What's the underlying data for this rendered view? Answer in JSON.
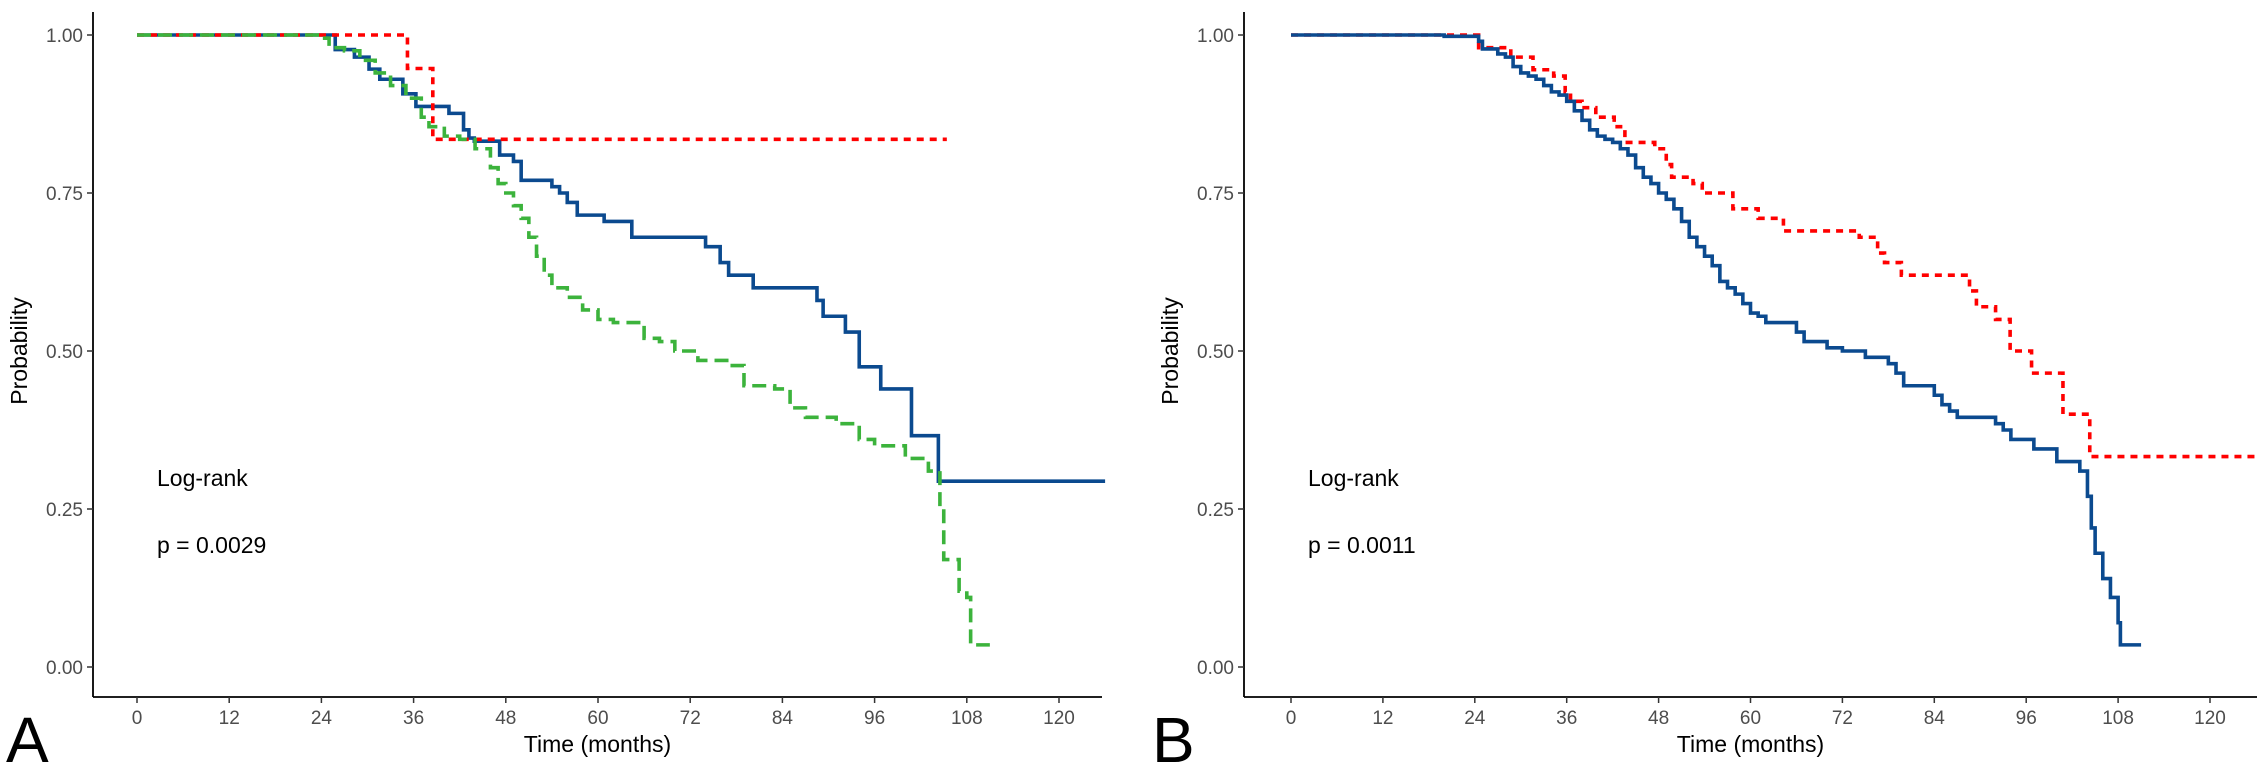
{
  "chart_data": [
    {
      "type": "line",
      "panel_label": "A",
      "xlabel": "Time (months)",
      "ylabel": "Probability",
      "xlim": [
        0,
        126
      ],
      "ylim": [
        0,
        1
      ],
      "xticks": [
        "0",
        "12",
        "24",
        "36",
        "48",
        "60",
        "72",
        "84",
        "96",
        "108",
        "120"
      ],
      "yticks": [
        "0.00",
        "0.25",
        "0.50",
        "0.75",
        "1.00"
      ],
      "grid": false,
      "annotations": [
        "Log-rank",
        "p = 0.0029"
      ],
      "series": [
        {
          "color": "#0b4a8f",
          "style": "solid",
          "end": 126,
          "steps": [
            [
              0,
              1
            ],
            [
              25.8,
              0.977
            ],
            [
              28.3,
              0.965
            ],
            [
              30.2,
              0.946
            ],
            [
              31.6,
              0.93
            ],
            [
              34.6,
              0.907
            ],
            [
              36.3,
              0.887
            ],
            [
              40.6,
              0.876
            ],
            [
              42.5,
              0.85
            ],
            [
              43.2,
              0.837
            ],
            [
              43.9,
              0.832
            ],
            [
              47.2,
              0.81
            ],
            [
              49,
              0.8
            ],
            [
              50,
              0.77
            ],
            [
              54,
              0.76
            ],
            [
              55,
              0.75
            ],
            [
              56,
              0.735
            ],
            [
              57.3,
              0.715
            ],
            [
              60.8,
              0.705
            ],
            [
              64.4,
              0.68
            ],
            [
              74,
              0.665
            ],
            [
              75.9,
              0.64
            ],
            [
              77,
              0.62
            ],
            [
              80.2,
              0.6
            ],
            [
              88.5,
              0.58
            ],
            [
              89.3,
              0.555
            ],
            [
              92.2,
              0.53
            ],
            [
              94,
              0.475
            ],
            [
              96.8,
              0.44
            ],
            [
              100.8,
              0.366
            ],
            [
              104.3,
              0.294
            ]
          ]
        },
        {
          "color": "#ff0000",
          "style": "dotted",
          "end": 105.4,
          "steps": [
            [
              0,
              1
            ],
            [
              35.2,
              0.947
            ],
            [
              38.5,
              0.835
            ]
          ]
        },
        {
          "color": "#3cb33c",
          "style": "dashed",
          "end": 111,
          "steps": [
            [
              0,
              1
            ],
            [
              24,
              0.995
            ],
            [
              25,
              0.98
            ],
            [
              27,
              0.975
            ],
            [
              29,
              0.96
            ],
            [
              31,
              0.94
            ],
            [
              33,
              0.92
            ],
            [
              35,
              0.9
            ],
            [
              37,
              0.87
            ],
            [
              38,
              0.855
            ],
            [
              40,
              0.84
            ],
            [
              42,
              0.835
            ],
            [
              44,
              0.82
            ],
            [
              46,
              0.79
            ],
            [
              47,
              0.765
            ],
            [
              48,
              0.75
            ],
            [
              49,
              0.73
            ],
            [
              50,
              0.71
            ],
            [
              51,
              0.68
            ],
            [
              52,
              0.65
            ],
            [
              53,
              0.62
            ],
            [
              54,
              0.6
            ],
            [
              56,
              0.585
            ],
            [
              58,
              0.565
            ],
            [
              60,
              0.55
            ],
            [
              62,
              0.545
            ],
            [
              66,
              0.52
            ],
            [
              68,
              0.515
            ],
            [
              70,
              0.5
            ],
            [
              73,
              0.485
            ],
            [
              77,
              0.477
            ],
            [
              79,
              0.445
            ],
            [
              83,
              0.44
            ],
            [
              85,
              0.41
            ],
            [
              87,
              0.395
            ],
            [
              91,
              0.385
            ],
            [
              94,
              0.36
            ],
            [
              96,
              0.35
            ],
            [
              100,
              0.33
            ],
            [
              103,
              0.31
            ],
            [
              104.5,
              0.25
            ],
            [
              105,
              0.17
            ],
            [
              107,
              0.12
            ],
            [
              108,
              0.11
            ],
            [
              108.5,
              0.035
            ]
          ]
        }
      ]
    },
    {
      "type": "line",
      "panel_label": "B",
      "xlabel": "Time (months)",
      "ylabel": "Probability",
      "xlim": [
        0,
        126
      ],
      "ylim": [
        0,
        1
      ],
      "xticks": [
        "0",
        "12",
        "24",
        "36",
        "48",
        "60",
        "72",
        "84",
        "96",
        "108",
        "120"
      ],
      "yticks": [
        "0.00",
        "0.25",
        "0.50",
        "0.75",
        "1.00"
      ],
      "grid": false,
      "annotations": [
        "Log-rank",
        "p = 0.0011"
      ],
      "series": [
        {
          "color": "#ff0000",
          "style": "dotted",
          "end": 126,
          "steps": [
            [
              0,
              1
            ],
            [
              24.5,
              0.98
            ],
            [
              26.6,
              0.98
            ],
            [
              28.7,
              0.965
            ],
            [
              31.6,
              0.945
            ],
            [
              34.3,
              0.935
            ],
            [
              35.8,
              0.91
            ],
            [
              36.5,
              0.895
            ],
            [
              38,
              0.885
            ],
            [
              39.8,
              0.87
            ],
            [
              42.2,
              0.855
            ],
            [
              43.6,
              0.83
            ],
            [
              47.5,
              0.82
            ],
            [
              49,
              0.795
            ],
            [
              49.7,
              0.775
            ],
            [
              52.5,
              0.765
            ],
            [
              53.7,
              0.75
            ],
            [
              57.7,
              0.725
            ],
            [
              61,
              0.71
            ],
            [
              64.3,
              0.69
            ],
            [
              74.2,
              0.68
            ],
            [
              76.6,
              0.655
            ],
            [
              77.5,
              0.64
            ],
            [
              79.7,
              0.62
            ],
            [
              88.6,
              0.595
            ],
            [
              89.5,
              0.57
            ],
            [
              92,
              0.55
            ],
            [
              93.9,
              0.5
            ],
            [
              96.7,
              0.465
            ],
            [
              100.8,
              0.4
            ],
            [
              104.3,
              0.333
            ]
          ]
        },
        {
          "color": "#0b4a8f",
          "style": "solid",
          "end": 111,
          "steps": [
            [
              0,
              1
            ],
            [
              20,
              0.998
            ],
            [
              24.5,
              0.99
            ],
            [
              25,
              0.978
            ],
            [
              27,
              0.97
            ],
            [
              28,
              0.965
            ],
            [
              29,
              0.95
            ],
            [
              30,
              0.94
            ],
            [
              31,
              0.935
            ],
            [
              32,
              0.93
            ],
            [
              33,
              0.92
            ],
            [
              34,
              0.91
            ],
            [
              35,
              0.905
            ],
            [
              36,
              0.895
            ],
            [
              37,
              0.88
            ],
            [
              38,
              0.865
            ],
            [
              39,
              0.85
            ],
            [
              40,
              0.84
            ],
            [
              41,
              0.835
            ],
            [
              42,
              0.83
            ],
            [
              43,
              0.82
            ],
            [
              44,
              0.81
            ],
            [
              45,
              0.79
            ],
            [
              46,
              0.775
            ],
            [
              47,
              0.765
            ],
            [
              48,
              0.75
            ],
            [
              49,
              0.74
            ],
            [
              50,
              0.725
            ],
            [
              51,
              0.705
            ],
            [
              52,
              0.68
            ],
            [
              53,
              0.665
            ],
            [
              54,
              0.65
            ],
            [
              55,
              0.635
            ],
            [
              56,
              0.61
            ],
            [
              57,
              0.6
            ],
            [
              58,
              0.59
            ],
            [
              59,
              0.575
            ],
            [
              60,
              0.56
            ],
            [
              61,
              0.555
            ],
            [
              62,
              0.545
            ],
            [
              66,
              0.53
            ],
            [
              67,
              0.515
            ],
            [
              70,
              0.505
            ],
            [
              72,
              0.5
            ],
            [
              75,
              0.49
            ],
            [
              78,
              0.48
            ],
            [
              79,
              0.465
            ],
            [
              80,
              0.445
            ],
            [
              84,
              0.43
            ],
            [
              85,
              0.415
            ],
            [
              86,
              0.405
            ],
            [
              87,
              0.395
            ],
            [
              92,
              0.385
            ],
            [
              93,
              0.375
            ],
            [
              94,
              0.36
            ],
            [
              97,
              0.345
            ],
            [
              100,
              0.325
            ],
            [
              103,
              0.31
            ],
            [
              104,
              0.27
            ],
            [
              104.5,
              0.22
            ],
            [
              105,
              0.18
            ],
            [
              106,
              0.14
            ],
            [
              107,
              0.11
            ],
            [
              108,
              0.07
            ],
            [
              108.3,
              0.035
            ]
          ]
        }
      ]
    }
  ]
}
